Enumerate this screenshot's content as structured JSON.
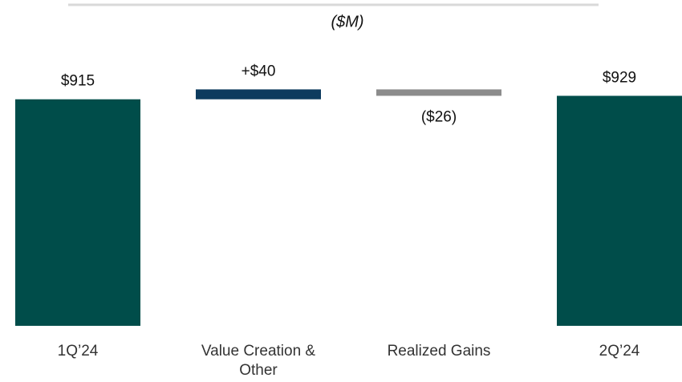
{
  "chart_data": {
    "type": "waterfall",
    "subtitle": "($M)",
    "categories": [
      "1Q’24",
      "Value Creation & Other",
      "Realized Gains",
      "2Q’24"
    ],
    "values": [
      915,
      40,
      -26,
      929
    ],
    "value_labels": [
      "$915",
      "+$40",
      "($26)",
      "$929"
    ],
    "measure": [
      "absolute",
      "relative",
      "relative",
      "total"
    ],
    "colors": [
      "#004d4a",
      "#0d3b5e",
      "#8c8c8c",
      "#004d4a"
    ],
    "ylim": [
      0,
      1000
    ]
  }
}
